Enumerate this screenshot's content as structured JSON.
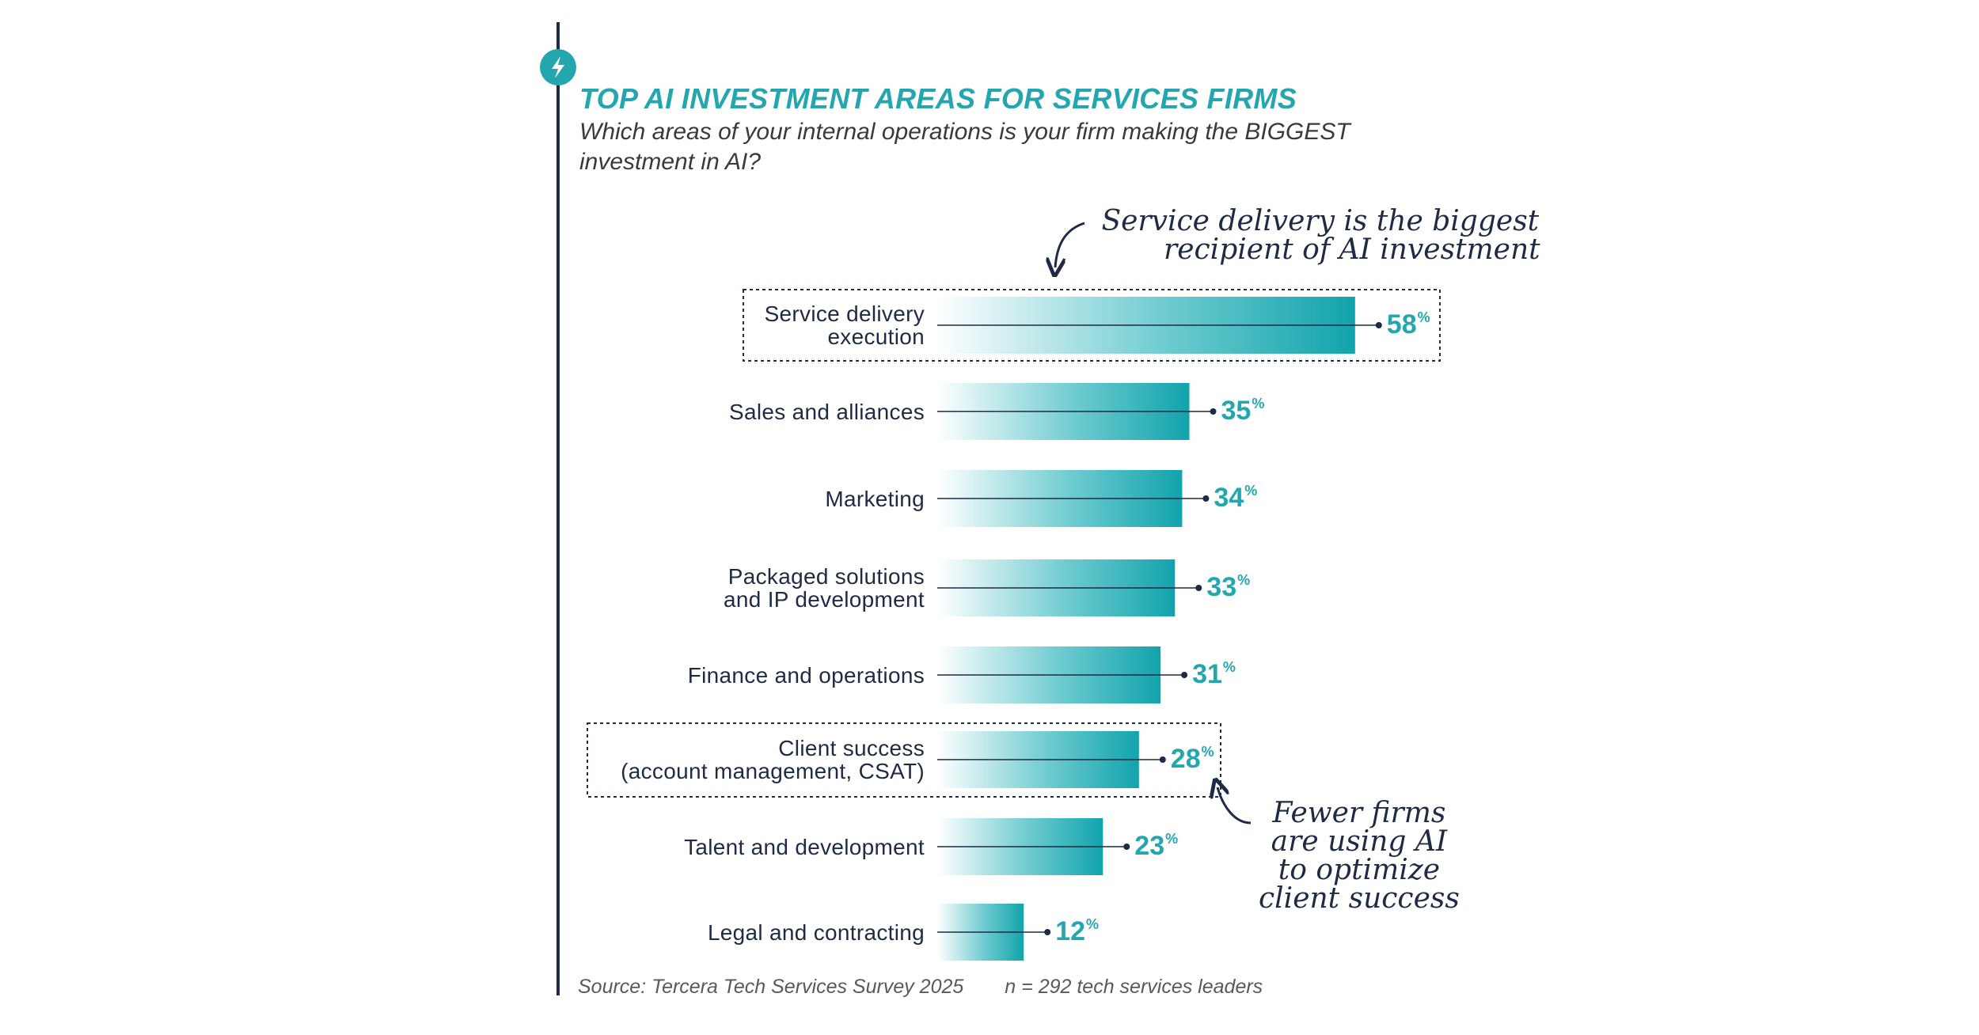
{
  "header": {
    "title": "TOP AI INVESTMENT AREAS FOR SERVICES FIRMS",
    "subtitle": "Which areas of your internal operations is your firm making the BIGGEST investment in AI?"
  },
  "icons": {
    "logo": "lightning-bolt-icon"
  },
  "colors": {
    "accent": "#24a6ae",
    "navy": "#1f2a44"
  },
  "chart_data": {
    "type": "bar",
    "orientation": "horizontal",
    "categories": [
      [
        "Service delivery",
        "execution"
      ],
      [
        "Sales and alliances"
      ],
      [
        "Marketing"
      ],
      [
        "Packaged solutions",
        "and IP development"
      ],
      [
        "Finance and operations"
      ],
      [
        "Client success",
        "(account management, CSAT)"
      ],
      [
        "Talent and development"
      ],
      [
        "Legal and contracting"
      ]
    ],
    "values": [
      58,
      35,
      34,
      33,
      31,
      28,
      23,
      12
    ],
    "value_suffix": "%",
    "highlighted": [
      0,
      5
    ],
    "annotations": [
      {
        "text": [
          "Service delivery is the biggest",
          "recipient of AI investment"
        ],
        "target": 0
      },
      {
        "text": [
          "Fewer firms",
          "are using AI",
          "to optimize",
          "client success"
        ],
        "target": 5
      }
    ]
  },
  "footer": {
    "source": "Source: Tercera Tech Services Survey 2025",
    "n": "n = 292 tech services leaders"
  }
}
